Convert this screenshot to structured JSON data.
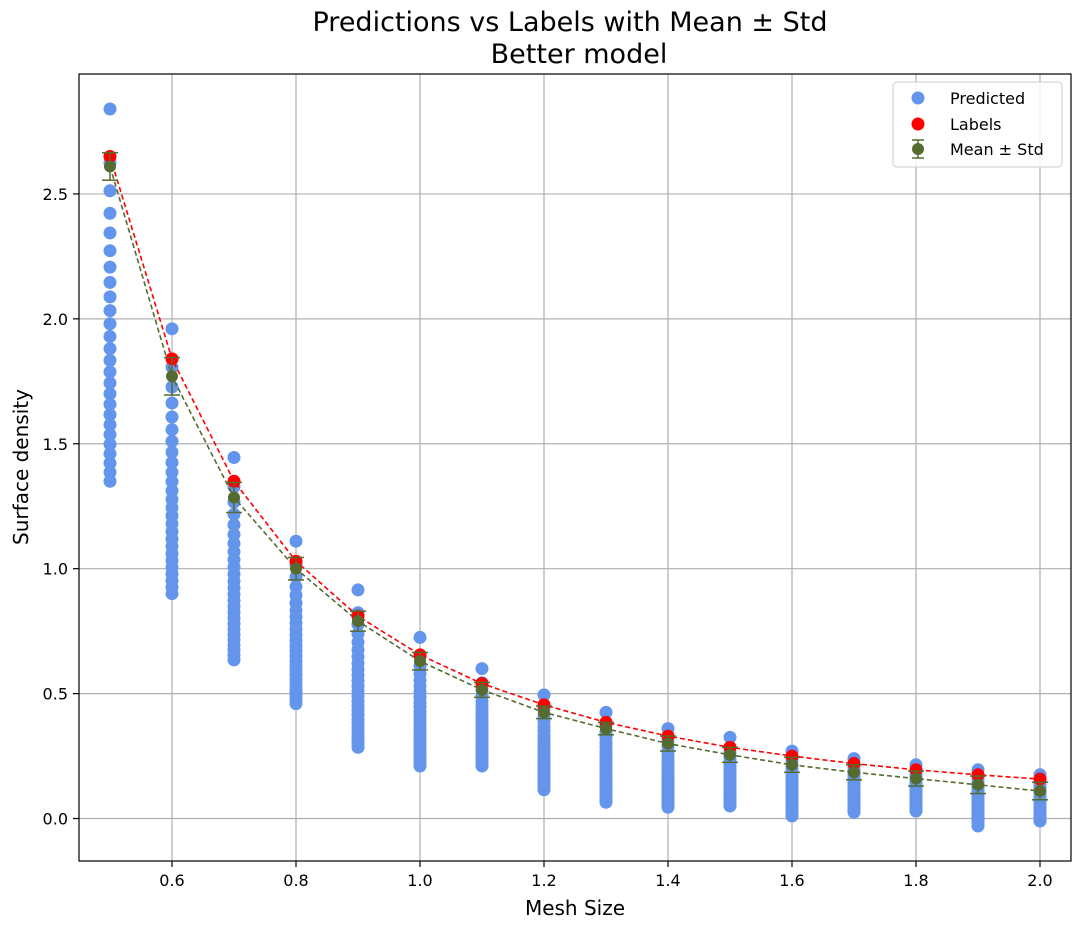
{
  "chart_data": {
    "type": "scatter",
    "title": "Predictions vs Labels with Mean ± Std",
    "subtitle": "Better model",
    "xlabel": "Mesh Size",
    "ylabel": "Surface density",
    "xlim": [
      0.45,
      2.05
    ],
    "ylim": [
      -0.17,
      2.98
    ],
    "xticks": [
      "0.6",
      "0.8",
      "1.0",
      "1.2",
      "1.4",
      "1.6",
      "1.8",
      "2.0"
    ],
    "xtick_values": [
      0.6,
      0.8,
      1.0,
      1.2,
      1.4,
      1.6,
      1.8,
      2.0
    ],
    "yticks": [
      "0.0",
      "0.5",
      "1.0",
      "1.5",
      "2.0",
      "2.5"
    ],
    "ytick_values": [
      0.0,
      0.5,
      1.0,
      1.5,
      2.0,
      2.5
    ],
    "grid": true,
    "legend_position": "top-right",
    "colors": {
      "predicted": "#6495ed",
      "labels": "#ff0000",
      "mean": "#556b2f",
      "grid": "#b0b0b0"
    },
    "x": [
      0.5,
      0.6,
      0.7,
      0.8,
      0.9,
      1.0,
      1.1,
      1.2,
      1.3,
      1.4,
      1.5,
      1.6,
      1.7,
      1.8,
      1.9,
      2.0
    ],
    "series": [
      {
        "name": "Labels",
        "style": "dashed-line-with-markers",
        "values": [
          2.65,
          1.84,
          1.35,
          1.03,
          0.81,
          0.655,
          0.54,
          0.455,
          0.385,
          0.33,
          0.285,
          0.25,
          0.22,
          0.195,
          0.175,
          0.158
        ]
      },
      {
        "name": "Mean ± Std",
        "style": "errorbar-dashed-line",
        "values": [
          2.61,
          1.77,
          1.285,
          1.0,
          0.79,
          0.63,
          0.515,
          0.425,
          0.36,
          0.3,
          0.255,
          0.215,
          0.185,
          0.16,
          0.135,
          0.11
        ],
        "std": [
          0.055,
          0.075,
          0.06,
          0.045,
          0.04,
          0.035,
          0.03,
          0.025,
          0.025,
          0.03,
          0.03,
          0.03,
          0.03,
          0.03,
          0.035,
          0.035
        ]
      },
      {
        "name": "Predicted",
        "style": "scatter-ranges",
        "min": [
          1.35,
          0.9,
          0.635,
          0.46,
          0.285,
          0.21,
          0.21,
          0.115,
          0.065,
          0.045,
          0.05,
          0.01,
          0.025,
          0.03,
          -0.03,
          -0.01
        ],
        "max": [
          2.84,
          1.96,
          1.445,
          1.11,
          0.915,
          0.725,
          0.6,
          0.495,
          0.425,
          0.36,
          0.325,
          0.27,
          0.24,
          0.215,
          0.195,
          0.175
        ]
      }
    ]
  }
}
